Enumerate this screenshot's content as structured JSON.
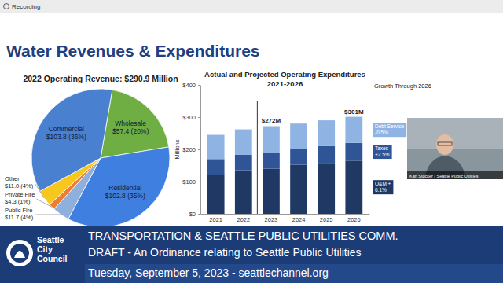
{
  "header": {
    "recording": "Recording"
  },
  "slide": {
    "title": "Water Revenues & Expenditures"
  },
  "chart_data": [
    {
      "type": "pie",
      "title": "2022 Operating Revenue: $290.9 Million",
      "categories": [
        "Wholesale",
        "Residential",
        "Public Fire",
        "Private Fire",
        "Other",
        "Commercial"
      ],
      "values": [
        57.4,
        102.8,
        11.7,
        4.3,
        11.0,
        103.8
      ],
      "value_labels": [
        "$57.4 (20%)",
        "$102.8 (35%)",
        "$11.7 (4%)",
        "$4.3 (1%)",
        "$11.0 (4%)",
        "$103.8 (36%)"
      ],
      "colors": [
        "#6fae43",
        "#3f7fe0",
        "#8fb0dd",
        "#ed7d31",
        "#f7c71d",
        "#4a80d0"
      ],
      "data_labels": true
    },
    {
      "type": "bar",
      "title": "Actual and Projected Operating Expenditures",
      "subtitle": "2021-2026",
      "y_label": "Millions",
      "categories": [
        "2021",
        "2022",
        "2023",
        "2024",
        "2025",
        "2026"
      ],
      "stacked": true,
      "grid": false,
      "series": [
        {
          "name": "O&M + 6.1%",
          "color": "#1f3864",
          "values": [
            120,
            135,
            140,
            152,
            158,
            165
          ]
        },
        {
          "name": "Taxes +2.5%",
          "color": "#2f5597",
          "values": [
            50,
            48,
            48,
            50,
            52,
            55
          ]
        },
        {
          "name": "Debt Service -0.5%",
          "color": "#8fb4e3",
          "values": [
            75,
            79,
            84,
            78,
            80,
            81
          ]
        }
      ],
      "ylim": [
        0,
        400
      ],
      "yticks": [
        {
          "value": 0,
          "label": "$0"
        },
        {
          "value": 100,
          "label": "$100"
        },
        {
          "value": 200,
          "label": "$200"
        },
        {
          "value": 300,
          "label": "$300"
        },
        {
          "value": 400,
          "label": "$400"
        }
      ],
      "annotations": [
        {
          "text": "$272M",
          "category": "2023",
          "value": 272
        },
        {
          "text": "$301M",
          "category": "2026",
          "value": 301
        },
        {
          "text": "Growth Through 2026"
        }
      ]
    }
  ],
  "webcam": {
    "caption": "Karl Stocker / Seattle Public Utilities"
  },
  "banner": {
    "logo": "Seattle City Council",
    "committee": "TRANSPORTATION & SEATTLE PUBLIC UTILITIES COMM.",
    "item": "DRAFT - An Ordinance relating to Seattle Public Utilities",
    "date": "Tuesday, September 5, 2023 - seattlechannel.org"
  }
}
